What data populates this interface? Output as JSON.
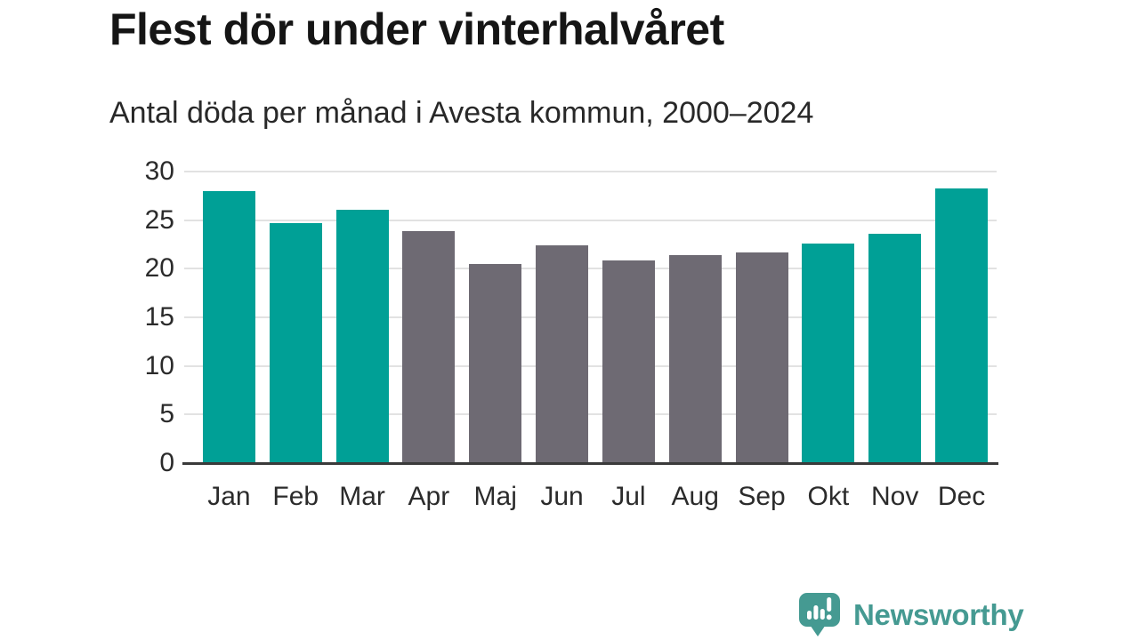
{
  "chart_data": {
    "type": "bar",
    "title": "Flest dör under vinterhalvåret",
    "subtitle": "Antal döda per månad i Avesta kommun, 2000–2024",
    "categories": [
      "Jan",
      "Feb",
      "Mar",
      "Apr",
      "Maj",
      "Jun",
      "Jul",
      "Aug",
      "Sep",
      "Okt",
      "Nov",
      "Dec"
    ],
    "values": [
      28,
      24.7,
      26.1,
      23.9,
      20.5,
      22.4,
      20.9,
      21.4,
      21.7,
      22.6,
      23.6,
      28.3
    ],
    "series_color_keys": [
      "winter",
      "winter",
      "winter",
      "summer",
      "summer",
      "summer",
      "summer",
      "summer",
      "summer",
      "winter",
      "winter",
      "winter"
    ],
    "colors": {
      "winter": "#00a096",
      "summer": "#6e6a73"
    },
    "xlabel": "",
    "ylabel": "",
    "ylim": [
      0,
      30
    ],
    "yticks": [
      0,
      5,
      10,
      15,
      20,
      25,
      30
    ],
    "grid": true,
    "legend": "none",
    "gridline_color": "#e2e2e2",
    "axis_line_color": "#3a3a3a"
  },
  "branding": {
    "logo_text": "Newsworthy",
    "logo_color": "#459a92"
  }
}
